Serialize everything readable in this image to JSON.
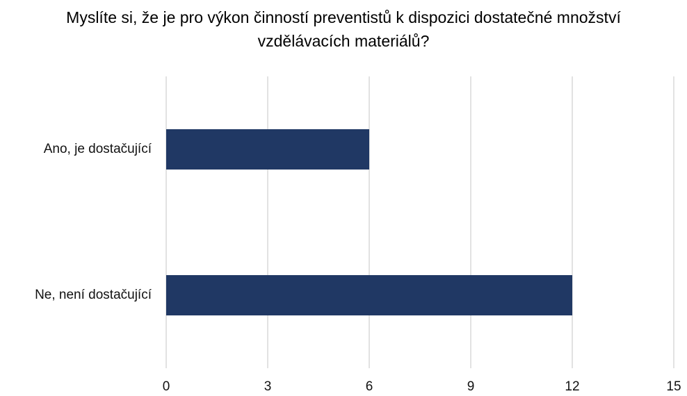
{
  "chart_data": {
    "type": "hbar",
    "title": "Myslíte si, že je pro výkon činností preventistů k dispozici dostatečné množství vzdělávacích materiálů?",
    "categories": [
      "Ano, je dostačující",
      "Ne, není dostačující"
    ],
    "values": [
      6,
      12
    ],
    "color": "#203864",
    "xlim": [
      0,
      15
    ],
    "xticks": [
      0,
      3,
      6,
      9,
      12,
      15
    ],
    "grid": true
  }
}
